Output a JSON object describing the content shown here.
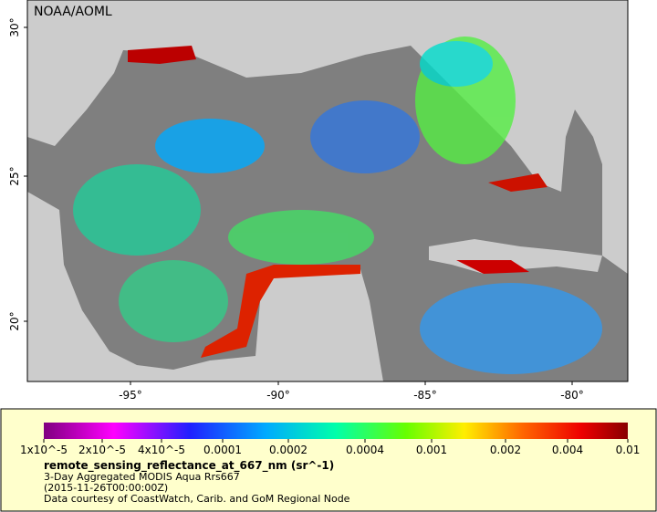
{
  "map": {
    "credit": "NOAA/AOML",
    "lat_labels": [
      "30°",
      "25°",
      "20°"
    ],
    "lon_labels": [
      "-95°",
      "-90°",
      "-85°",
      "-80°"
    ]
  },
  "legend": {
    "scale_labels": [
      "1x10^-5",
      "2x10^-5",
      "4x10^-5",
      "0.0001",
      "0.0002",
      "0.0004",
      "0.001",
      "0.002",
      "0.004",
      "0.01"
    ],
    "variable": "remote_sensing_reflectance_at_667_nm (sr^-1)",
    "lines": [
      "3-Day Aggregated MODIS Aqua Rrs667",
      "(2015-11-26T00:00:00Z)",
      "Data courtesy of CoastWatch, Carib. and GoM Regional Node"
    ]
  }
}
